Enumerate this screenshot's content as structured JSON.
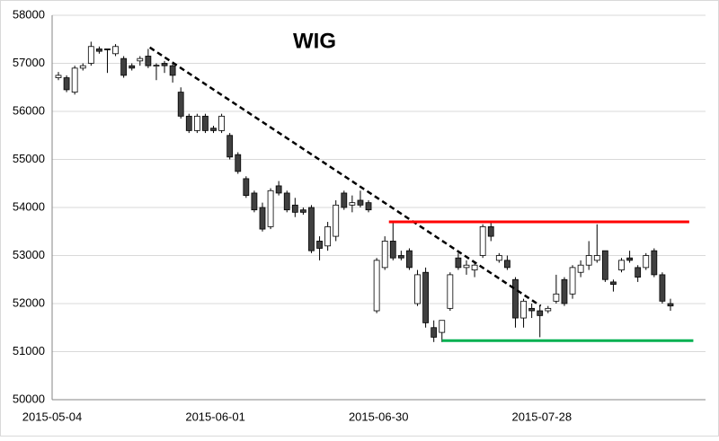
{
  "chart_data": {
    "type": "candlestick",
    "title": "WIG",
    "categories": [
      "2015-05-04",
      null,
      null,
      null,
      null,
      null,
      null,
      null,
      null,
      null,
      null,
      null,
      null,
      null,
      null,
      null,
      null,
      null,
      null,
      null,
      "2015-06-01",
      null,
      null,
      null,
      null,
      null,
      null,
      null,
      null,
      null,
      null,
      null,
      null,
      null,
      null,
      null,
      null,
      null,
      null,
      null,
      "2015-06-30",
      null,
      null,
      null,
      null,
      null,
      null,
      null,
      null,
      null,
      null,
      null,
      null,
      null,
      null,
      null,
      null,
      null,
      null,
      null,
      "2015-07-28",
      null,
      null,
      null,
      null,
      null,
      null,
      null,
      null,
      null,
      null,
      null,
      null,
      null,
      null,
      null
    ],
    "open": [
      56700,
      56700,
      56400,
      56900,
      57000,
      57300,
      57300,
      57200,
      57100,
      56950,
      57050,
      57150,
      56950,
      57000,
      56950,
      56400,
      55900,
      55600,
      55900,
      55650,
      55600,
      55500,
      55100,
      54600,
      54300,
      54000,
      53600,
      54450,
      54300,
      54050,
      53950,
      54000,
      53300,
      53200,
      53400,
      54300,
      54050,
      54150,
      54100,
      51850,
      52750,
      53300,
      53000,
      53100,
      52000,
      52650,
      51500,
      51400,
      51900,
      52950,
      52750,
      52700,
      53000,
      53600,
      52900,
      52900,
      52500,
      51700,
      51900,
      51850,
      51850,
      52050,
      52500,
      52200,
      52650,
      52800,
      52900,
      53100,
      52450,
      52700,
      52950,
      52750,
      52750,
      53100,
      52600,
      52000
    ],
    "high": [
      56820,
      56750,
      56950,
      57000,
      57450,
      57350,
      57300,
      57400,
      57150,
      57000,
      57150,
      57300,
      57000,
      57050,
      57000,
      56500,
      55950,
      55950,
      55950,
      55700,
      55950,
      55550,
      55150,
      54650,
      54350,
      54100,
      54400,
      54550,
      54350,
      54200,
      54000,
      54050,
      53400,
      53700,
      54150,
      54350,
      54250,
      54350,
      54150,
      52950,
      53400,
      53700,
      53100,
      53150,
      52700,
      52750,
      51650,
      51650,
      52650,
      53050,
      52900,
      52850,
      53650,
      53700,
      53050,
      53000,
      52550,
      52100,
      52000,
      51950,
      51950,
      52600,
      52550,
      52800,
      52900,
      53300,
      53650,
      53100,
      52500,
      52950,
      53100,
      52800,
      53050,
      53150,
      52650,
      52100
    ],
    "low": [
      56650,
      56400,
      56350,
      56850,
      56950,
      57200,
      56800,
      57150,
      56700,
      56850,
      56950,
      56900,
      56650,
      56800,
      56600,
      55850,
      55550,
      55550,
      55550,
      55550,
      55550,
      55000,
      54700,
      54200,
      53900,
      53500,
      53550,
      54250,
      53900,
      53800,
      53850,
      53050,
      52900,
      53100,
      53300,
      53950,
      53900,
      54000,
      53900,
      51800,
      52700,
      52900,
      52900,
      52700,
      51950,
      51500,
      51200,
      51200,
      51850,
      52700,
      52600,
      52550,
      52950,
      53300,
      52850,
      52700,
      51500,
      51500,
      51700,
      51300,
      51800,
      52000,
      51950,
      52100,
      52550,
      52700,
      52850,
      52450,
      52250,
      52650,
      52850,
      52450,
      52700,
      52550,
      52000,
      51850
    ],
    "close": [
      56750,
      56450,
      56900,
      56950,
      57350,
      57250,
      57280,
      57350,
      56750,
      56900,
      57100,
      56950,
      56960,
      56950,
      56750,
      55900,
      55600,
      55900,
      55600,
      55600,
      55900,
      55050,
      54750,
      54250,
      53950,
      53550,
      54350,
      54300,
      53950,
      53900,
      53900,
      53100,
      53150,
      53600,
      54050,
      54000,
      54100,
      54050,
      53950,
      52900,
      53300,
      52950,
      52950,
      52750,
      52600,
      51600,
      51300,
      51650,
      52600,
      52750,
      52800,
      52800,
      53600,
      53400,
      53000,
      52750,
      51700,
      52050,
      51850,
      51750,
      51900,
      52200,
      52000,
      52750,
      52800,
      53000,
      53000,
      52500,
      52400,
      52900,
      52900,
      52550,
      53000,
      52600,
      52050,
      51950
    ],
    "up_color": "#ffffff",
    "down_color": "#404040",
    "edge_color": "#000000",
    "ylim": [
      50000,
      58000
    ],
    "yticks": [
      50000,
      51000,
      52000,
      53000,
      54000,
      55000,
      56000,
      57000,
      58000
    ],
    "grid": true,
    "trend_lines": [
      {
        "x": [
          11.2,
          59.1
        ],
        "values": [
          57330,
          51950
        ],
        "color": "#000000",
        "dashed": true
      },
      {
        "x": [
          40.5,
          77.3
        ],
        "values": [
          53700,
          53700
        ],
        "color": "#ff0000",
        "dashed": false
      },
      {
        "x": [
          47.0,
          77.8
        ],
        "values": [
          51230,
          51230
        ],
        "color": "#00b050",
        "dashed": false
      }
    ]
  }
}
